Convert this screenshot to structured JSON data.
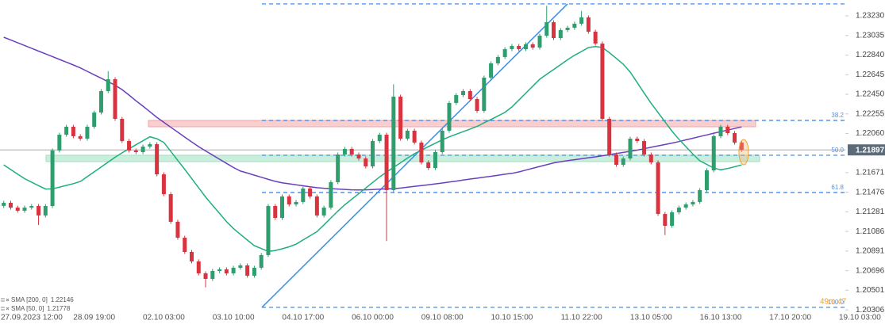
{
  "chart_data": {
    "type": "candlestick",
    "up_color": "#2e9e6e",
    "down_color": "#d9333f",
    "ylim": [
      1.20299,
      1.23388
    ],
    "yticks": [
      {
        "value": 1.2323,
        "label": "1.23230"
      },
      1.23035,
      {
        "value": 1.2284,
        "label": "1.22840"
      },
      1.22645,
      {
        "value": 1.2245,
        "label": "1.22450"
      },
      1.22255,
      {
        "value": 1.2206,
        "label": "1.22060"
      },
      1.21671,
      1.21476,
      1.21281,
      1.21086,
      1.20891,
      1.20696,
      1.20501,
      1.20306
    ],
    "categories": [
      null,
      null,
      null,
      "27.09.2023 12:00",
      null,
      null,
      null,
      null,
      null,
      null,
      null,
      null,
      null,
      "28.09 19:00",
      null,
      null,
      null,
      null,
      null,
      null,
      null,
      null,
      null,
      "02.10 03:00",
      null,
      null,
      null,
      null,
      null,
      null,
      null,
      null,
      null,
      "03.10 10:00",
      null,
      null,
      null,
      null,
      null,
      null,
      null,
      null,
      null,
      "04.10 17:00",
      null,
      null,
      null,
      null,
      null,
      null,
      null,
      null,
      null,
      "06.10 00:00",
      null,
      null,
      null,
      null,
      null,
      null,
      null,
      null,
      null,
      "09.10 08:00",
      null,
      null,
      null,
      null,
      null,
      null,
      null,
      null,
      null,
      "10.10 15:00",
      null,
      null,
      null,
      null,
      null,
      null,
      null,
      null,
      null,
      "11.10 22:00",
      null,
      null,
      null,
      null,
      null,
      null,
      null,
      null,
      null,
      "13.10 05:00",
      null,
      null,
      null,
      null,
      null,
      null,
      null,
      null,
      null,
      "16.10 13:00",
      null,
      null,
      null,
      null,
      null,
      null,
      null,
      null,
      null,
      "17.10 20:00",
      null,
      null,
      null,
      null,
      null,
      null,
      null,
      null,
      null,
      "19.10 03:00"
    ],
    "open": [
      1.2134,
      1.21371,
      1.21323,
      1.21292,
      1.21323,
      1.21339,
      1.21245,
      1.21339,
      1.21891,
      1.22048,
      1.22127,
      1.22033,
      1.22009,
      1.22127,
      1.22269,
      1.22482,
      1.226,
      1.22206,
      1.21985,
      1.21891,
      1.21875,
      1.2193,
      1.21954,
      1.21654,
      1.21457,
      1.21182,
      1.21024,
      1.20882,
      1.20788,
      1.20669,
      1.20614,
      1.20693,
      1.20709,
      1.20669,
      1.20725,
      1.20748,
      1.20646,
      1.20725,
      1.20851,
      1.21339,
      1.21221,
      1.21434,
      1.21355,
      1.21379,
      1.21513,
      1.21434,
      1.21245,
      1.21323,
      1.21576,
      1.21851,
      1.21907,
      1.21851,
      1.21812,
      1.21733,
      1.21985,
      1.22048,
      1.21497,
      1.22427,
      1.22009,
      1.22088,
      1.2197,
      1.21773,
      1.21717,
      1.21875,
      1.22088,
      1.22364,
      1.22442,
      1.22482,
      1.22403,
      1.22285,
      1.22616,
      1.22758,
      1.22821,
      1.22899,
      1.22931,
      1.22899,
      1.22947,
      1.22915,
      1.23033,
      1.23167,
      1.2301,
      1.23089,
      1.23112,
      1.23152,
      1.23215,
      1.23073,
      1.22955,
      1.22206,
      1.21851,
      1.21749,
      1.21812,
      1.22009,
      1.21985,
      1.21851,
      1.21773,
      1.2126,
      1.21142,
      1.21276,
      1.21323,
      1.21355,
      1.21379,
      1.21497,
      1.21694,
      1.22033,
      1.22127,
      1.22064,
      1.2197,
      null,
      null,
      null,
      null,
      null,
      null,
      null,
      null,
      null,
      null,
      null,
      null,
      null,
      null,
      null,
      null,
      null
    ],
    "high": [
      1.21391,
      1.21391,
      1.21343,
      1.21343,
      1.21359,
      1.21359,
      1.21359,
      1.21911,
      1.22068,
      1.22147,
      1.22147,
      1.22053,
      1.22147,
      1.22289,
      1.22502,
      1.2268,
      1.2262,
      1.22226,
      1.22005,
      1.21911,
      1.2195,
      1.21974,
      1.21974,
      1.21674,
      1.21477,
      1.21202,
      1.21044,
      1.20902,
      1.20808,
      1.20689,
      1.20713,
      1.20729,
      1.20729,
      1.20745,
      1.20768,
      1.20768,
      1.20745,
      1.20871,
      1.21359,
      1.21359,
      1.21454,
      1.21454,
      1.21399,
      1.21533,
      1.21533,
      1.21454,
      1.21343,
      1.21596,
      1.21871,
      1.21927,
      1.21927,
      1.21871,
      1.21832,
      1.22005,
      1.22068,
      1.22068,
      1.2255,
      1.22447,
      1.22108,
      1.22108,
      1.2199,
      1.21793,
      1.21895,
      1.22108,
      1.22384,
      1.22462,
      1.22502,
      1.22502,
      1.22423,
      1.22636,
      1.22778,
      1.22841,
      1.22919,
      1.22951,
      1.22951,
      1.22967,
      1.22967,
      1.23053,
      1.2333,
      1.23187,
      1.23109,
      1.23132,
      1.23172,
      1.2328,
      1.23235,
      1.23093,
      1.22975,
      1.22226,
      1.21871,
      1.21832,
      1.22029,
      1.22029,
      1.22005,
      1.21871,
      1.21793,
      1.2128,
      1.21296,
      1.21343,
      1.21375,
      1.21399,
      1.21517,
      1.21714,
      1.22053,
      1.22147,
      1.22147,
      1.22084,
      1.2199,
      null,
      null,
      null,
      null,
      null,
      null,
      null,
      null,
      null,
      null,
      null,
      null,
      null,
      null,
      null,
      null,
      null
    ],
    "low": [
      1.2132,
      1.21303,
      1.21272,
      1.21272,
      1.21303,
      1.2115,
      1.21225,
      1.21319,
      1.21871,
      1.22028,
      1.22013,
      1.21989,
      1.21989,
      1.22107,
      1.22249,
      1.22462,
      1.22186,
      1.21965,
      1.21871,
      1.21855,
      1.21855,
      1.2191,
      1.21634,
      1.21437,
      1.21162,
      1.21004,
      1.20862,
      1.20768,
      1.20649,
      1.2053,
      1.20594,
      1.20673,
      1.20649,
      1.20649,
      1.20705,
      1.20626,
      1.20626,
      1.20705,
      1.20831,
      1.21201,
      1.21201,
      1.21335,
      1.21335,
      1.21359,
      1.21414,
      1.21225,
      1.21225,
      1.21303,
      1.21556,
      1.21831,
      1.21831,
      1.21792,
      1.21713,
      1.21713,
      1.21965,
      1.2099,
      1.21477,
      1.21989,
      1.21989,
      1.2195,
      1.21753,
      1.21697,
      1.21697,
      1.21855,
      1.22068,
      1.22344,
      1.22422,
      1.22383,
      1.22265,
      1.22265,
      1.22596,
      1.22738,
      1.22801,
      1.22879,
      1.22879,
      1.22879,
      1.22895,
      1.22895,
      1.23013,
      1.2299,
      1.2299,
      1.23069,
      1.23092,
      1.23132,
      1.23053,
      1.22935,
      1.22186,
      1.21831,
      1.21729,
      1.21729,
      1.21792,
      1.21965,
      1.21831,
      1.21753,
      1.2124,
      1.2105,
      1.21122,
      1.21256,
      1.21303,
      1.21335,
      1.21359,
      1.21477,
      1.21674,
      1.22013,
      1.22044,
      1.2195,
      1.21877,
      null,
      null,
      null,
      null,
      null,
      null,
      null,
      null,
      null,
      null,
      null,
      null,
      null,
      null,
      null,
      null,
      null
    ],
    "close": [
      1.21371,
      1.21323,
      1.21292,
      1.21323,
      1.21339,
      1.21245,
      1.21339,
      1.21891,
      1.22048,
      1.22127,
      1.22033,
      1.22009,
      1.22127,
      1.22269,
      1.22482,
      1.226,
      1.22206,
      1.21985,
      1.21891,
      1.21875,
      1.2193,
      1.21954,
      1.21654,
      1.21457,
      1.21182,
      1.21024,
      1.20882,
      1.20788,
      1.20669,
      1.20614,
      1.20693,
      1.20709,
      1.20669,
      1.20725,
      1.20748,
      1.20646,
      1.20725,
      1.20851,
      1.21339,
      1.21221,
      1.21434,
      1.21355,
      1.21379,
      1.21513,
      1.21434,
      1.21245,
      1.21323,
      1.21576,
      1.21851,
      1.21907,
      1.21851,
      1.21812,
      1.21733,
      1.21985,
      1.22048,
      1.21497,
      1.22427,
      1.22009,
      1.22088,
      1.2197,
      1.21773,
      1.21717,
      1.21875,
      1.22088,
      1.22364,
      1.22442,
      1.22482,
      1.22403,
      1.22285,
      1.22616,
      1.22758,
      1.22821,
      1.22899,
      1.22931,
      1.22899,
      1.22947,
      1.22915,
      1.23033,
      1.23167,
      1.2301,
      1.23089,
      1.23112,
      1.23152,
      1.23215,
      1.23073,
      1.22955,
      1.22206,
      1.21851,
      1.21749,
      1.21812,
      1.22009,
      1.21985,
      1.21851,
      1.21773,
      1.2126,
      1.21142,
      1.21276,
      1.21323,
      1.21355,
      1.21379,
      1.21497,
      1.21694,
      1.22033,
      1.22127,
      1.22064,
      1.2197,
      1.21897,
      null,
      null,
      null,
      null,
      null,
      null,
      null,
      null,
      null,
      null,
      null,
      null,
      null,
      null,
      null,
      null,
      null
    ],
    "series": [
      {
        "name": "SMA [200, 0]",
        "color": "#6a3fbf",
        "legend_value": 1.22146,
        "values": [
          1.23018,
          1.22991,
          1.22963,
          1.22936,
          1.22908,
          1.2288,
          1.22853,
          1.22825,
          1.22797,
          1.2277,
          1.22742,
          1.22713,
          1.22679,
          1.22644,
          1.2261,
          1.22575,
          1.22541,
          1.22497,
          1.22442,
          1.22386,
          1.22332,
          1.22276,
          1.22221,
          1.22171,
          1.22122,
          1.22074,
          1.22025,
          1.21977,
          1.21929,
          1.21887,
          1.21846,
          1.21804,
          1.21763,
          1.21722,
          1.21687,
          1.21667,
          1.21646,
          1.21625,
          1.21604,
          1.21584,
          1.2157,
          1.2156,
          1.2155,
          1.2154,
          1.21531,
          1.21521,
          1.21516,
          1.21512,
          1.21508,
          1.21504,
          1.215,
          1.21498,
          1.215,
          1.21503,
          1.21506,
          1.21509,
          1.21512,
          1.21517,
          1.21526,
          1.21534,
          1.21542,
          1.2155,
          1.21559,
          1.21568,
          1.21578,
          1.21587,
          1.21597,
          1.21607,
          1.21616,
          1.21626,
          1.21635,
          1.21645,
          1.21655,
          1.21664,
          1.21678,
          1.21696,
          1.21714,
          1.21732,
          1.2175,
          1.21768,
          1.2178,
          1.2179,
          1.21799,
          1.21809,
          1.21819,
          1.21828,
          1.21839,
          1.2185,
          1.21861,
          1.21872,
          1.21883,
          1.21895,
          1.21909,
          1.21923,
          1.21937,
          1.21951,
          1.21965,
          1.2198,
          1.21997,
          1.22013,
          1.2203,
          1.22046,
          1.22063,
          1.22078,
          1.22094,
          1.2211,
          1.22126,
          null,
          null,
          null,
          null,
          null,
          null,
          null,
          null,
          null,
          null,
          null,
          null,
          null,
          null,
          null,
          null,
          null
        ]
      },
      {
        "name": "SMA [50, 0]",
        "color": "#1fae7e",
        "legend_value": 1.21778,
        "values": [
          1.21748,
          1.21702,
          1.21656,
          1.21611,
          1.21576,
          1.21542,
          1.21508,
          1.21509,
          1.21527,
          1.21544,
          1.21561,
          1.21583,
          1.21631,
          1.21679,
          1.21727,
          1.21776,
          1.21824,
          1.21868,
          1.21908,
          1.21948,
          1.21988,
          1.22028,
          1.22008,
          1.21971,
          1.21882,
          1.21793,
          1.21705,
          1.21613,
          1.2152,
          1.21429,
          1.21346,
          1.21265,
          1.21185,
          1.21115,
          1.21057,
          1.21,
          1.20944,
          1.20916,
          1.20888,
          1.20896,
          1.20914,
          1.20933,
          1.20959,
          1.21001,
          1.21043,
          1.21084,
          1.21151,
          1.2122,
          1.21289,
          1.21351,
          1.21407,
          1.21462,
          1.21517,
          1.21573,
          1.21628,
          1.21676,
          1.21723,
          1.21769,
          1.21816,
          1.21859,
          1.21894,
          1.21929,
          1.21963,
          1.21998,
          1.22027,
          1.22053,
          1.22078,
          1.22104,
          1.22131,
          1.22166,
          1.222,
          1.22235,
          1.2227,
          1.22324,
          1.22393,
          1.22462,
          1.22531,
          1.226,
          1.22649,
          1.22697,
          1.22745,
          1.22794,
          1.22838,
          1.22876,
          1.22915,
          1.22925,
          1.22916,
          1.22864,
          1.22807,
          1.2275,
          1.22671,
          1.22567,
          1.22463,
          1.22361,
          1.22268,
          1.22175,
          1.22084,
          1.22003,
          1.21929,
          1.21856,
          1.21789,
          1.21753,
          1.21717,
          1.21699,
          1.21712,
          1.21729,
          1.21747,
          null,
          null,
          null,
          null,
          null,
          null,
          null,
          null,
          null,
          null,
          null,
          null,
          null,
          null,
          null,
          null,
          null
        ]
      }
    ],
    "levels": [
      {
        "price": 1.23349
      },
      {
        "price": 1.2219,
        "label": "38.2"
      },
      {
        "price": 1.21844,
        "label": "50.0"
      },
      {
        "price": 1.21473,
        "label": "61.8"
      },
      {
        "price": 1.20331,
        "label": "100.0"
      }
    ],
    "zones": [
      {
        "top": 1.2219,
        "bottom": 1.22127,
        "color": "#f4a6a6"
      },
      {
        "top": 1.21844,
        "bottom": 1.21781,
        "color": "#9fe0c0"
      }
    ],
    "trendline": {
      "start": 1.20331,
      "end": 1.23349,
      "color": "#3a8ee6"
    },
    "last_price": 1.21897,
    "countdown": "49m 47"
  }
}
